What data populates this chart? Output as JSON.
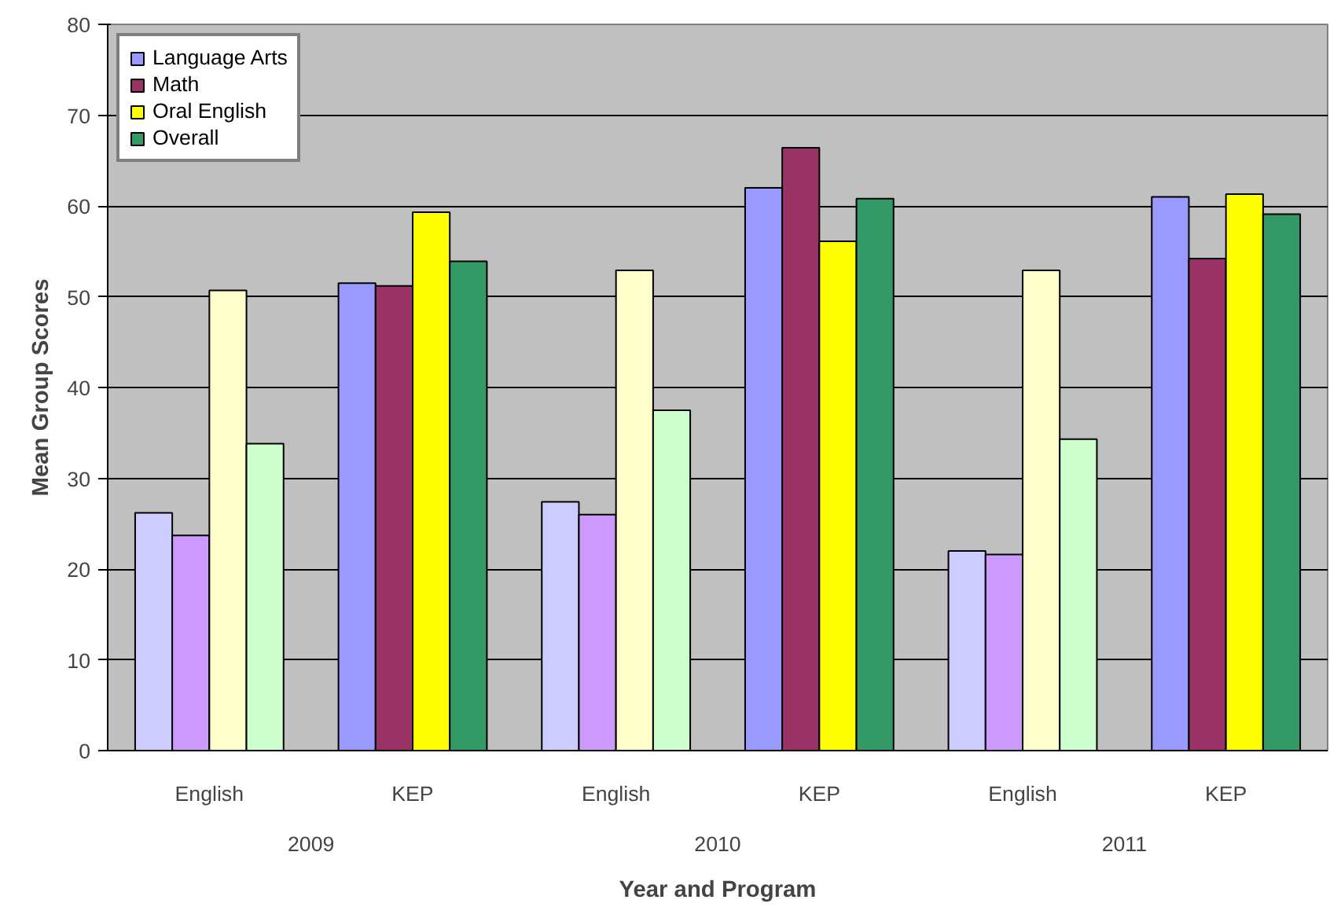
{
  "chart_data": {
    "type": "bar",
    "xlabel": "Year and Program",
    "ylabel": "Mean Group Scores",
    "categories": [
      "English",
      "KEP",
      "English",
      "KEP",
      "English",
      "KEP"
    ],
    "annotations": [
      "2009",
      "2010",
      "2011"
    ],
    "series": [
      {
        "name": "Language Arts",
        "color": "#9999ff",
        "colors": [
          "#ccccff",
          "#9999ff",
          "#ccccff",
          "#9999ff",
          "#ccccff",
          "#9999ff"
        ],
        "values": [
          26.2,
          51.5,
          27.4,
          62.0,
          22.0,
          61.0
        ]
      },
      {
        "name": "Math",
        "color": "#993366",
        "colors": [
          "#cc99ff",
          "#993366",
          "#cc99ff",
          "#993366",
          "#cc99ff",
          "#993366"
        ],
        "values": [
          23.7,
          51.2,
          26.0,
          66.4,
          21.6,
          54.2
        ]
      },
      {
        "name": "Oral English",
        "color": "#ffff00",
        "colors": [
          "#ffffcc",
          "#ffff00",
          "#ffffcc",
          "#ffff00",
          "#ffffcc",
          "#ffff00"
        ],
        "values": [
          50.7,
          59.3,
          52.9,
          56.1,
          52.9,
          61.3
        ]
      },
      {
        "name": "Overall",
        "color": "#339966",
        "colors": [
          "#ccffcc",
          "#339966",
          "#ccffcc",
          "#339966",
          "#ccffcc",
          "#339966"
        ],
        "values": [
          33.8,
          53.9,
          37.5,
          60.8,
          34.3,
          59.1
        ]
      }
    ],
    "ylim": [
      0,
      80
    ],
    "yticks": [
      0,
      10,
      20,
      30,
      40,
      50,
      60,
      70,
      80
    ],
    "grid": "y",
    "legend": "top left"
  }
}
